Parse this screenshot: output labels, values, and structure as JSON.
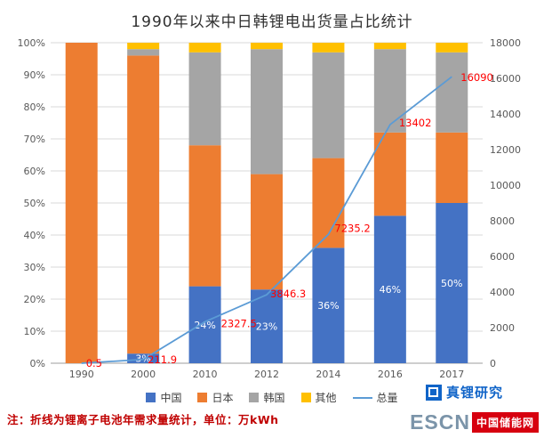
{
  "note": "注：折线为锂离子电池年需求量统计，单位：万kWh",
  "footer": {
    "zhenli_logo": "真锂研究",
    "escn_abbr": "ESCN",
    "escn_name": "中国储能网"
  },
  "chart_data": {
    "type": "stacked-bar-line",
    "title": "1990年以来中日韩锂电出货量占比统计",
    "categories": [
      "1990",
      "2000",
      "2010",
      "2012",
      "2014",
      "2016",
      "2017"
    ],
    "series": [
      {
        "name": "中国",
        "color": "#4472C4",
        "values": [
          0,
          3,
          24,
          23,
          36,
          46,
          50
        ]
      },
      {
        "name": "日本",
        "color": "#ED7D31",
        "values": [
          100,
          93,
          44,
          36,
          28,
          26,
          22
        ]
      },
      {
        "name": "韩国",
        "color": "#A5A5A5",
        "values": [
          0,
          2,
          29,
          39,
          33,
          26,
          25
        ]
      },
      {
        "name": "其他",
        "color": "#FFC000",
        "values": [
          0,
          2,
          3,
          2,
          3,
          2,
          3
        ]
      }
    ],
    "bar_labels": [
      "",
      "3%",
      "24%",
      "23%",
      "36%",
      "46%",
      "50%"
    ],
    "line": {
      "name": "总量",
      "color": "#5B9BD5",
      "label_color": "#FF0000",
      "values": [
        0.5,
        211.9,
        2327.5,
        3846.3,
        7235.2,
        13402,
        16090
      ],
      "labels": [
        "0.5",
        "211.9",
        "2327.5",
        "3846.3",
        "7235.2",
        "13402",
        "16090"
      ]
    },
    "left_axis": {
      "min": 0,
      "max": 100,
      "step": 10,
      "format": "percent",
      "ticks": [
        "0%",
        "10%",
        "20%",
        "30%",
        "40%",
        "50%",
        "60%",
        "70%",
        "80%",
        "90%",
        "100%"
      ]
    },
    "right_axis": {
      "min": 0,
      "max": 18000,
      "step": 2000,
      "ticks": [
        "0",
        "2000",
        "4000",
        "6000",
        "8000",
        "10000",
        "12000",
        "14000",
        "16000",
        "18000"
      ]
    },
    "grid": true,
    "legend_position": "bottom"
  }
}
